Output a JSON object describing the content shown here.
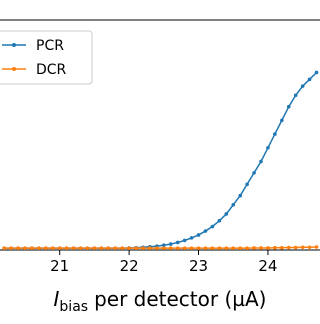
{
  "chart_data": {
    "type": "line",
    "xlabel": {
      "symbol": "I",
      "subscript": "bias",
      "text": "per detector (µA)"
    },
    "x": [
      20.2,
      20.3,
      20.4,
      20.5,
      20.6,
      20.7,
      20.8,
      20.9,
      21.0,
      21.1,
      21.2,
      21.3,
      21.4,
      21.5,
      21.6,
      21.7,
      21.8,
      21.9,
      22.0,
      22.1,
      22.2,
      22.3,
      22.4,
      22.5,
      22.6,
      22.7,
      22.8,
      22.9,
      23.0,
      23.1,
      23.2,
      23.3,
      23.4,
      23.5,
      23.6,
      23.7,
      23.8,
      23.9,
      24.0,
      24.1,
      24.2,
      24.3,
      24.4,
      24.5,
      24.6,
      24.7
    ],
    "series": [
      {
        "name": "PCR",
        "color": "#1f77b4",
        "values": [
          0,
          0,
          0,
          0,
          0,
          0,
          0,
          0,
          0,
          0,
          0,
          0,
          0,
          0,
          0,
          0,
          0,
          0,
          0.001,
          0.002,
          0.004,
          0.006,
          0.009,
          0.013,
          0.018,
          0.025,
          0.034,
          0.045,
          0.058,
          0.075,
          0.095,
          0.12,
          0.15,
          0.19,
          0.23,
          0.28,
          0.33,
          0.38,
          0.44,
          0.5,
          0.56,
          0.62,
          0.67,
          0.71,
          0.74,
          0.77
        ]
      },
      {
        "name": "DCR",
        "color": "#ff7f0e",
        "values": [
          0,
          0,
          0,
          0,
          0,
          0,
          0,
          0,
          0,
          0,
          0,
          0,
          0,
          0,
          0,
          0,
          0,
          0,
          0,
          0,
          0,
          0,
          0,
          0,
          0,
          0,
          0,
          0,
          0,
          0,
          0,
          0,
          0,
          0,
          0,
          0,
          0.001,
          0.001,
          0.001,
          0.002,
          0.002,
          0.003,
          0.003,
          0.004,
          0.004,
          0.005
        ]
      }
    ],
    "xlim": [
      20.14,
      24.75
    ],
    "ylim": [
      -0.008,
      1
    ],
    "xticks": [
      21,
      22,
      23,
      24
    ],
    "legend": "upper left"
  }
}
